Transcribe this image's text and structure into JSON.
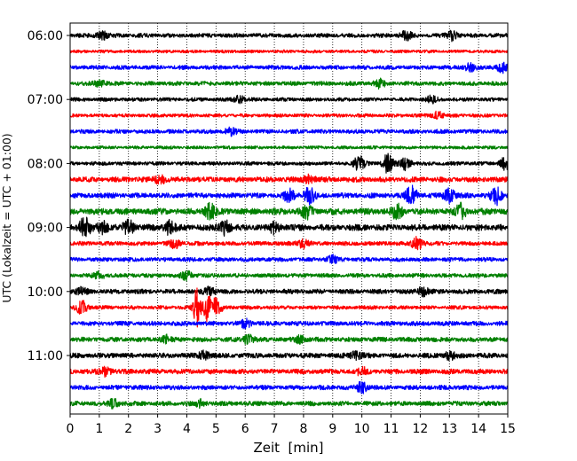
{
  "chart_data": {
    "type": "line",
    "title": "",
    "xlabel": "Zeit  [min]",
    "ylabel": "UTC (Lokalzeit = UTC + 01:00)",
    "xlim": [
      0,
      15
    ],
    "x_ticks": [
      "0",
      "1",
      "2",
      "3",
      "4",
      "5",
      "6",
      "7",
      "8",
      "9",
      "10",
      "11",
      "12",
      "13",
      "14",
      "15"
    ],
    "y_ticks": [
      "06:00",
      "07:00",
      "08:00",
      "09:00",
      "10:00",
      "11:00"
    ],
    "grid": "vertical dotted",
    "trace_interval_min": 15,
    "trace_colors": [
      "#000000",
      "#ff0000",
      "#0000ff",
      "#008000"
    ],
    "series": [
      {
        "start": "06:00",
        "color": "#000000",
        "amplitude": 0.2,
        "bursts": [
          {
            "x": 1.1,
            "amp": 0.35
          },
          {
            "x": 11.5,
            "amp": 0.4
          },
          {
            "x": 13.1,
            "amp": 0.45
          }
        ]
      },
      {
        "start": "06:15",
        "color": "#ff0000",
        "amplitude": 0.15,
        "bursts": []
      },
      {
        "start": "06:30",
        "color": "#0000ff",
        "amplitude": 0.2,
        "bursts": [
          {
            "x": 13.7,
            "amp": 0.35
          },
          {
            "x": 14.8,
            "amp": 0.4
          }
        ]
      },
      {
        "start": "06:45",
        "color": "#008000",
        "amplitude": 0.2,
        "bursts": [
          {
            "x": 1.0,
            "amp": 0.3
          },
          {
            "x": 10.6,
            "amp": 0.35
          }
        ]
      },
      {
        "start": "07:00",
        "color": "#000000",
        "amplitude": 0.18,
        "bursts": [
          {
            "x": 5.8,
            "amp": 0.3
          },
          {
            "x": 12.4,
            "amp": 0.3
          }
        ]
      },
      {
        "start": "07:15",
        "color": "#ff0000",
        "amplitude": 0.17,
        "bursts": [
          {
            "x": 12.6,
            "amp": 0.35
          }
        ]
      },
      {
        "start": "07:30",
        "color": "#0000ff",
        "amplitude": 0.2,
        "bursts": [
          {
            "x": 5.5,
            "amp": 0.3
          }
        ]
      },
      {
        "start": "07:45",
        "color": "#008000",
        "amplitude": 0.15,
        "bursts": []
      },
      {
        "start": "08:00",
        "color": "#000000",
        "amplitude": 0.18,
        "bursts": [
          {
            "x": 9.9,
            "amp": 0.7
          },
          {
            "x": 10.9,
            "amp": 0.9
          },
          {
            "x": 11.5,
            "amp": 0.55
          },
          {
            "x": 14.9,
            "amp": 0.55
          }
        ]
      },
      {
        "start": "08:15",
        "color": "#ff0000",
        "amplitude": 0.25,
        "bursts": [
          {
            "x": 3.1,
            "amp": 0.35
          },
          {
            "x": 8.2,
            "amp": 0.35
          }
        ]
      },
      {
        "start": "08:30",
        "color": "#0000ff",
        "amplitude": 0.25,
        "bursts": [
          {
            "x": 7.5,
            "amp": 0.5
          },
          {
            "x": 8.2,
            "amp": 0.8
          },
          {
            "x": 11.7,
            "amp": 0.8
          },
          {
            "x": 13.0,
            "amp": 0.65
          },
          {
            "x": 14.6,
            "amp": 0.75
          }
        ]
      },
      {
        "start": "08:45",
        "color": "#008000",
        "amplitude": 0.3,
        "bursts": [
          {
            "x": 4.8,
            "amp": 0.65
          },
          {
            "x": 8.1,
            "amp": 0.55
          },
          {
            "x": 11.2,
            "amp": 0.55
          },
          {
            "x": 13.4,
            "amp": 0.6
          }
        ]
      },
      {
        "start": "09:00",
        "color": "#000000",
        "amplitude": 0.3,
        "bursts": [
          {
            "x": 0.5,
            "amp": 0.85
          },
          {
            "x": 1.1,
            "amp": 0.6
          },
          {
            "x": 2.0,
            "amp": 0.6
          },
          {
            "x": 3.4,
            "amp": 0.55
          },
          {
            "x": 5.3,
            "amp": 0.6
          },
          {
            "x": 7.0,
            "amp": 0.45
          }
        ]
      },
      {
        "start": "09:15",
        "color": "#ff0000",
        "amplitude": 0.2,
        "bursts": [
          {
            "x": 3.6,
            "amp": 0.4
          },
          {
            "x": 8.0,
            "amp": 0.45
          },
          {
            "x": 11.9,
            "amp": 0.55
          }
        ]
      },
      {
        "start": "09:30",
        "color": "#0000ff",
        "amplitude": 0.2,
        "bursts": [
          {
            "x": 9.0,
            "amp": 0.35
          }
        ]
      },
      {
        "start": "09:45",
        "color": "#008000",
        "amplitude": 0.2,
        "bursts": [
          {
            "x": 1.0,
            "amp": 0.3
          },
          {
            "x": 4.0,
            "amp": 0.35
          }
        ]
      },
      {
        "start": "10:00",
        "color": "#000000",
        "amplitude": 0.22,
        "bursts": [
          {
            "x": 0.4,
            "amp": 0.3
          },
          {
            "x": 4.8,
            "amp": 0.4
          },
          {
            "x": 12.1,
            "amp": 0.4
          }
        ]
      },
      {
        "start": "10:15",
        "color": "#ff0000",
        "amplitude": 0.18,
        "bursts": [
          {
            "x": 0.4,
            "amp": 0.6
          },
          {
            "x": 4.35,
            "amp": 1.8
          },
          {
            "x": 4.7,
            "amp": 1.4
          },
          {
            "x": 5.0,
            "amp": 0.8
          }
        ]
      },
      {
        "start": "10:30",
        "color": "#0000ff",
        "amplitude": 0.22,
        "bursts": [
          {
            "x": 6.0,
            "amp": 0.35
          }
        ]
      },
      {
        "start": "10:45",
        "color": "#008000",
        "amplitude": 0.22,
        "bursts": [
          {
            "x": 3.3,
            "amp": 0.35
          },
          {
            "x": 6.1,
            "amp": 0.4
          },
          {
            "x": 7.9,
            "amp": 0.35
          }
        ]
      },
      {
        "start": "11:00",
        "color": "#000000",
        "amplitude": 0.24,
        "bursts": [
          {
            "x": 4.6,
            "amp": 0.35
          },
          {
            "x": 9.8,
            "amp": 0.35
          },
          {
            "x": 13.0,
            "amp": 0.35
          }
        ]
      },
      {
        "start": "11:15",
        "color": "#ff0000",
        "amplitude": 0.24,
        "bursts": [
          {
            "x": 1.2,
            "amp": 0.35
          },
          {
            "x": 10.0,
            "amp": 0.3
          }
        ]
      },
      {
        "start": "11:30",
        "color": "#0000ff",
        "amplitude": 0.22,
        "bursts": [
          {
            "x": 10.0,
            "amp": 0.45
          }
        ]
      },
      {
        "start": "11:45",
        "color": "#008000",
        "amplitude": 0.22,
        "bursts": [
          {
            "x": 1.5,
            "amp": 0.35
          },
          {
            "x": 4.5,
            "amp": 0.3
          }
        ]
      }
    ]
  }
}
